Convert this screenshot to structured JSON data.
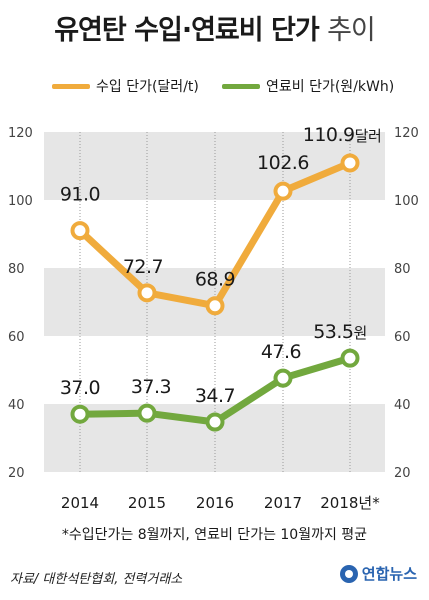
{
  "title_main": "유연탄 수입·연료비 단가",
  "title_tail": "추이",
  "colors": {
    "import": "#f0ab3c",
    "fuel": "#72a83e",
    "band": "#e6e6e6"
  },
  "chart_data": {
    "type": "line",
    "categories": [
      "2014",
      "2015",
      "2016",
      "2017",
      "2018년*"
    ],
    "ylim": [
      20,
      120
    ],
    "yticks": [
      20,
      40,
      60,
      80,
      100,
      120
    ],
    "grid": "alternating bands",
    "legend_position": "top",
    "series": [
      {
        "name": "수입 단가(달러/t)",
        "color": "#f0ab3c",
        "values": [
          91.0,
          72.7,
          68.9,
          102.6,
          110.9
        ],
        "labels": [
          "91.0",
          "72.7",
          "68.9",
          "102.6",
          "110.9"
        ],
        "last_unit": "달러"
      },
      {
        "name": "연료비 단가(원/kWh)",
        "color": "#72a83e",
        "values": [
          37.0,
          37.3,
          34.7,
          47.6,
          53.5
        ],
        "labels": [
          "37.0",
          "37.3",
          "34.7",
          "47.6",
          "53.5"
        ],
        "last_unit": "원"
      }
    ]
  },
  "footnote": "*수입단가는 8월까지, 연료비 단가는 10월까지 평균",
  "source": "자료/ 대한석탄협회, 전력거래소",
  "logo": "연합뉴스"
}
